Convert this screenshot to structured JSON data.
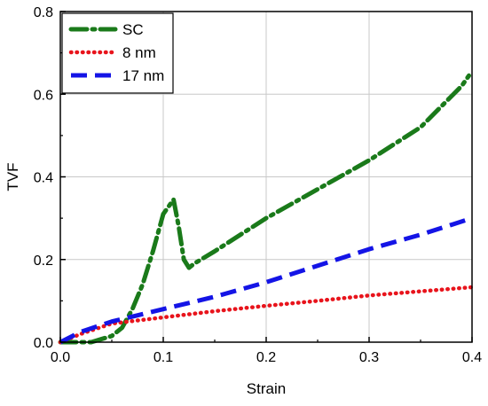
{
  "chart_data": {
    "type": "line",
    "title": "",
    "xlabel": "Strain",
    "ylabel": "TVF",
    "xlim": [
      0.0,
      0.4
    ],
    "ylim": [
      0.0,
      0.8
    ],
    "xticks": [
      0.0,
      0.1,
      0.2,
      0.3,
      0.4
    ],
    "xtick_labels": [
      "0.0",
      "0.1",
      "0.2",
      "0.3",
      "0.4"
    ],
    "yticks": [
      0.0,
      0.2,
      0.4,
      0.6,
      0.8
    ],
    "ytick_labels": [
      "0.0",
      "0.2",
      "0.4",
      "0.6",
      "0.8"
    ],
    "grid": true,
    "legend_position": "top-left",
    "series": [
      {
        "name": "SC",
        "color": "#1a7a1a",
        "style": "dash-dot",
        "x": [
          0.0,
          0.03,
          0.05,
          0.06,
          0.07,
          0.08,
          0.09,
          0.1,
          0.11,
          0.115,
          0.12,
          0.125,
          0.13,
          0.15,
          0.2,
          0.25,
          0.3,
          0.35,
          0.39,
          0.397
        ],
        "y": [
          0.0,
          0.0,
          0.015,
          0.035,
          0.08,
          0.14,
          0.22,
          0.31,
          0.345,
          0.28,
          0.2,
          0.18,
          0.19,
          0.22,
          0.3,
          0.37,
          0.44,
          0.52,
          0.62,
          0.645
        ]
      },
      {
        "name": "8 nm",
        "color": "#e8141c",
        "style": "dotted",
        "x": [
          0.0,
          0.02,
          0.05,
          0.1,
          0.15,
          0.2,
          0.25,
          0.3,
          0.35,
          0.4
        ],
        "y": [
          0.0,
          0.02,
          0.045,
          0.06,
          0.075,
          0.088,
          0.1,
          0.113,
          0.123,
          0.133
        ]
      },
      {
        "name": "17 nm",
        "color": "#1414e6",
        "style": "dashed",
        "x": [
          0.0,
          0.02,
          0.05,
          0.1,
          0.15,
          0.2,
          0.25,
          0.3,
          0.35,
          0.4
        ],
        "y": [
          0.0,
          0.025,
          0.05,
          0.08,
          0.11,
          0.145,
          0.185,
          0.225,
          0.26,
          0.3
        ]
      }
    ]
  }
}
